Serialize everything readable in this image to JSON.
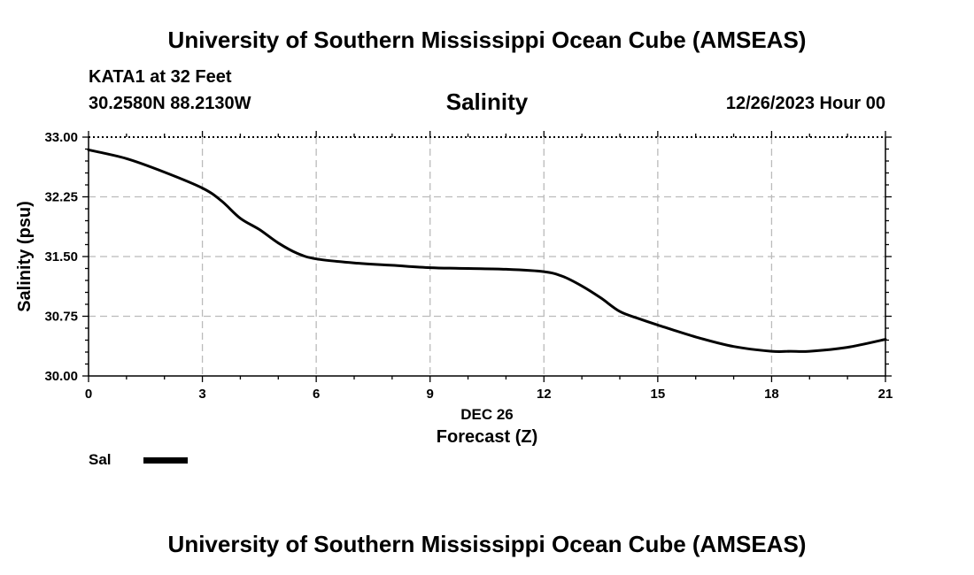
{
  "header": {
    "title": "University of Southern Mississippi Ocean Cube (AMSEAS)",
    "station": "KATA1 at 32 Feet",
    "coords": "30.2580N  88.2130W",
    "datetime": "12/26/2023 Hour 00"
  },
  "footer": {
    "title": "University of Southern Mississippi Ocean Cube (AMSEAS)"
  },
  "chart_data": {
    "type": "line",
    "title": "Salinity",
    "xlabel": "Forecast (Z)",
    "xsublabel": "DEC 26",
    "ylabel": "Salinity (psu)",
    "xlim": [
      0,
      21
    ],
    "ylim": [
      30.0,
      33.0
    ],
    "xticks": [
      0,
      3,
      6,
      9,
      12,
      15,
      18,
      21
    ],
    "xtick_labels": [
      "0",
      "3",
      "6",
      "9",
      "12",
      "15",
      "18",
      "21"
    ],
    "yticks": [
      30.0,
      30.75,
      31.5,
      32.25,
      33.0
    ],
    "ytick_labels": [
      "30.00",
      "30.75",
      "31.50",
      "32.25",
      "33.00"
    ],
    "grid": true,
    "legend_position": "bottom-left",
    "series": [
      {
        "name": "Sal",
        "color": "#000000",
        "x": [
          0,
          1,
          2,
          3,
          3.5,
          4,
          4.5,
          5,
          5.5,
          6,
          7,
          8,
          9,
          10,
          11,
          12,
          12.5,
          13,
          13.5,
          14,
          14.5,
          15,
          16,
          17,
          18,
          18.5,
          19,
          20,
          21
        ],
        "values": [
          32.84,
          32.73,
          32.56,
          32.36,
          32.2,
          31.98,
          31.84,
          31.67,
          31.54,
          31.47,
          31.42,
          31.39,
          31.36,
          31.35,
          31.34,
          31.31,
          31.25,
          31.13,
          30.98,
          30.81,
          30.72,
          30.64,
          30.49,
          30.37,
          30.31,
          30.31,
          30.31,
          30.36,
          30.46
        ]
      }
    ]
  }
}
